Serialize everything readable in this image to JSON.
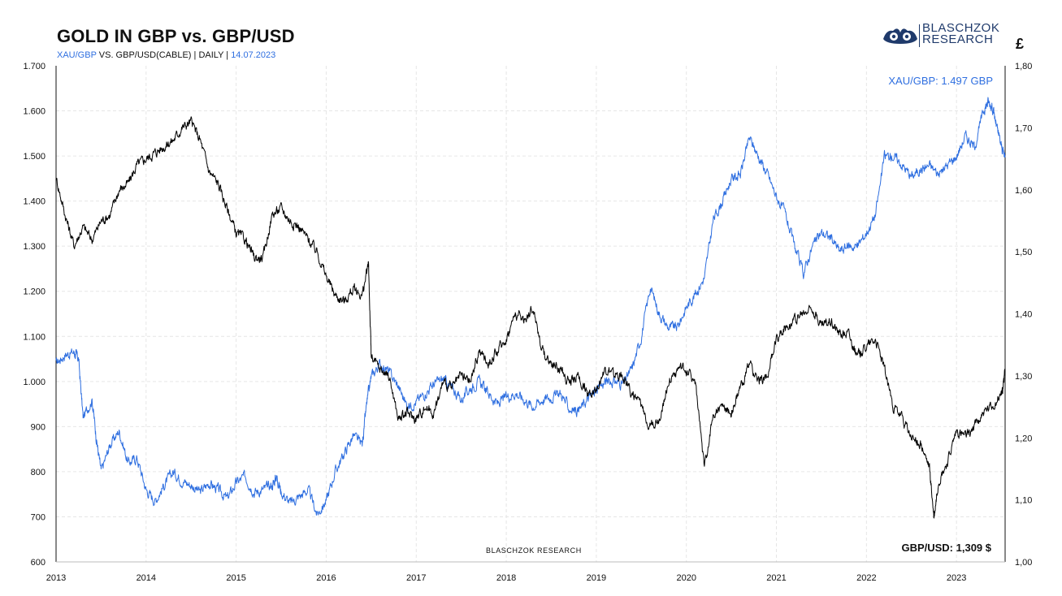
{
  "header": {
    "title": "GOLD IN GBP vs. GBP/USD",
    "subtitle_series": "XAU/GBP",
    "subtitle_text": " VS. GBP/USD(CABLE) | DAILY | ",
    "subtitle_date": "14.07.2023",
    "currency_symbol": "£"
  },
  "logo": {
    "line1": "BLASCHZOK",
    "line2": "RESEARCH"
  },
  "annotations": {
    "latest_gold": "XAU/GBP: 1.497 GBP",
    "latest_cable": "GBP/USD: 1,309 $",
    "watermark": "BLASCHZOK  RESEARCH"
  },
  "colors": {
    "gold_series": "#2f6fe0",
    "cable_series": "#000000"
  },
  "chart_data": {
    "type": "line",
    "title": "GOLD IN GBP vs. GBP/USD",
    "x_ticks": [
      "2013",
      "2014",
      "2015",
      "2016",
      "2017",
      "2018",
      "2019",
      "2020",
      "2021",
      "2022",
      "2023"
    ],
    "xlim": [
      2013.0,
      2023.54
    ],
    "y_left": {
      "ticks": [
        "600",
        "700",
        "800",
        "900",
        "1.000",
        "1.100",
        "1.200",
        "1.300",
        "1.400",
        "1.500",
        "1.600",
        "1.700"
      ],
      "lim": [
        600,
        1700
      ]
    },
    "y_right": {
      "ticks": [
        "1,00",
        "1,10",
        "1,20",
        "1,30",
        "1,40",
        "1,50",
        "1,60",
        "1,70",
        "1,80"
      ],
      "lim": [
        1.0,
        1.8
      ]
    },
    "grid": true,
    "series": [
      {
        "name": "XAU/GBP",
        "axis": "left",
        "points": [
          [
            2013.0,
            1040
          ],
          [
            2013.1,
            1060
          ],
          [
            2013.2,
            1065
          ],
          [
            2013.25,
            1050
          ],
          [
            2013.3,
            920
          ],
          [
            2013.4,
            960
          ],
          [
            2013.45,
            870
          ],
          [
            2013.5,
            800
          ],
          [
            2013.6,
            860
          ],
          [
            2013.7,
            890
          ],
          [
            2013.8,
            820
          ],
          [
            2013.9,
            830
          ],
          [
            2014.0,
            760
          ],
          [
            2014.1,
            735
          ],
          [
            2014.2,
            770
          ],
          [
            2014.3,
            800
          ],
          [
            2014.4,
            780
          ],
          [
            2014.5,
            770
          ],
          [
            2014.6,
            755
          ],
          [
            2014.7,
            775
          ],
          [
            2014.8,
            760
          ],
          [
            2014.9,
            740
          ],
          [
            2015.0,
            775
          ],
          [
            2015.1,
            790
          ],
          [
            2015.2,
            755
          ],
          [
            2015.3,
            760
          ],
          [
            2015.4,
            770
          ],
          [
            2015.45,
            790
          ],
          [
            2015.5,
            755
          ],
          [
            2015.6,
            730
          ],
          [
            2015.7,
            745
          ],
          [
            2015.8,
            760
          ],
          [
            2015.9,
            705
          ],
          [
            2016.0,
            735
          ],
          [
            2016.1,
            800
          ],
          [
            2016.2,
            840
          ],
          [
            2016.3,
            880
          ],
          [
            2016.4,
            860
          ],
          [
            2016.45,
            950
          ],
          [
            2016.5,
            1010
          ],
          [
            2016.6,
            1040
          ],
          [
            2016.7,
            1020
          ],
          [
            2016.8,
            990
          ],
          [
            2016.9,
            945
          ],
          [
            2017.0,
            955
          ],
          [
            2017.1,
            975
          ],
          [
            2017.2,
            995
          ],
          [
            2017.3,
            1005
          ],
          [
            2017.4,
            985
          ],
          [
            2017.5,
            960
          ],
          [
            2017.6,
            985
          ],
          [
            2017.7,
            1000
          ],
          [
            2017.8,
            975
          ],
          [
            2017.9,
            950
          ],
          [
            2018.0,
            965
          ],
          [
            2018.1,
            975
          ],
          [
            2018.2,
            960
          ],
          [
            2018.3,
            945
          ],
          [
            2018.4,
            960
          ],
          [
            2018.5,
            965
          ],
          [
            2018.6,
            975
          ],
          [
            2018.7,
            940
          ],
          [
            2018.8,
            935
          ],
          [
            2018.9,
            960
          ],
          [
            2019.0,
            980
          ],
          [
            2019.1,
            1000
          ],
          [
            2019.2,
            1000
          ],
          [
            2019.3,
            995
          ],
          [
            2019.4,
            1030
          ],
          [
            2019.5,
            1100
          ],
          [
            2019.6,
            1210
          ],
          [
            2019.7,
            1150
          ],
          [
            2019.8,
            1120
          ],
          [
            2019.9,
            1120
          ],
          [
            2020.0,
            1165
          ],
          [
            2020.1,
            1195
          ],
          [
            2020.2,
            1230
          ],
          [
            2020.3,
            1360
          ],
          [
            2020.4,
            1400
          ],
          [
            2020.5,
            1450
          ],
          [
            2020.6,
            1460
          ],
          [
            2020.7,
            1540
          ],
          [
            2020.8,
            1500
          ],
          [
            2020.9,
            1460
          ],
          [
            2021.0,
            1410
          ],
          [
            2021.1,
            1370
          ],
          [
            2021.2,
            1300
          ],
          [
            2021.3,
            1240
          ],
          [
            2021.4,
            1300
          ],
          [
            2021.5,
            1330
          ],
          [
            2021.6,
            1320
          ],
          [
            2021.7,
            1290
          ],
          [
            2021.8,
            1300
          ],
          [
            2021.9,
            1300
          ],
          [
            2022.0,
            1330
          ],
          [
            2022.1,
            1370
          ],
          [
            2022.2,
            1500
          ],
          [
            2022.3,
            1500
          ],
          [
            2022.4,
            1480
          ],
          [
            2022.5,
            1455
          ],
          [
            2022.6,
            1470
          ],
          [
            2022.7,
            1480
          ],
          [
            2022.8,
            1460
          ],
          [
            2022.9,
            1480
          ],
          [
            2023.0,
            1500
          ],
          [
            2023.1,
            1545
          ],
          [
            2023.2,
            1520
          ],
          [
            2023.3,
            1600
          ],
          [
            2023.35,
            1620
          ],
          [
            2023.4,
            1610
          ],
          [
            2023.45,
            1560
          ],
          [
            2023.5,
            1520
          ],
          [
            2023.54,
            1497
          ]
        ]
      },
      {
        "name": "GBP/USD",
        "axis": "right",
        "points": [
          [
            2013.0,
            1.62
          ],
          [
            2013.1,
            1.56
          ],
          [
            2013.2,
            1.51
          ],
          [
            2013.3,
            1.54
          ],
          [
            2013.4,
            1.52
          ],
          [
            2013.5,
            1.55
          ],
          [
            2013.6,
            1.56
          ],
          [
            2013.7,
            1.6
          ],
          [
            2013.8,
            1.61
          ],
          [
            2013.9,
            1.64
          ],
          [
            2014.0,
            1.65
          ],
          [
            2014.1,
            1.66
          ],
          [
            2014.2,
            1.67
          ],
          [
            2014.3,
            1.68
          ],
          [
            2014.4,
            1.7
          ],
          [
            2014.5,
            1.71
          ],
          [
            2014.6,
            1.68
          ],
          [
            2014.7,
            1.63
          ],
          [
            2014.8,
            1.61
          ],
          [
            2014.9,
            1.57
          ],
          [
            2015.0,
            1.53
          ],
          [
            2015.1,
            1.52
          ],
          [
            2015.2,
            1.49
          ],
          [
            2015.3,
            1.49
          ],
          [
            2015.4,
            1.56
          ],
          [
            2015.5,
            1.57
          ],
          [
            2015.6,
            1.55
          ],
          [
            2015.7,
            1.54
          ],
          [
            2015.8,
            1.52
          ],
          [
            2015.9,
            1.5
          ],
          [
            2016.0,
            1.46
          ],
          [
            2016.1,
            1.43
          ],
          [
            2016.2,
            1.42
          ],
          [
            2016.3,
            1.44
          ],
          [
            2016.4,
            1.43
          ],
          [
            2016.47,
            1.48
          ],
          [
            2016.5,
            1.33
          ],
          [
            2016.6,
            1.31
          ],
          [
            2016.7,
            1.3
          ],
          [
            2016.8,
            1.23
          ],
          [
            2016.9,
            1.24
          ],
          [
            2017.0,
            1.23
          ],
          [
            2017.1,
            1.25
          ],
          [
            2017.2,
            1.24
          ],
          [
            2017.3,
            1.29
          ],
          [
            2017.4,
            1.28
          ],
          [
            2017.5,
            1.3
          ],
          [
            2017.6,
            1.29
          ],
          [
            2017.7,
            1.34
          ],
          [
            2017.8,
            1.32
          ],
          [
            2017.9,
            1.34
          ],
          [
            2018.0,
            1.36
          ],
          [
            2018.1,
            1.4
          ],
          [
            2018.2,
            1.39
          ],
          [
            2018.3,
            1.41
          ],
          [
            2018.4,
            1.34
          ],
          [
            2018.5,
            1.32
          ],
          [
            2018.6,
            1.31
          ],
          [
            2018.7,
            1.29
          ],
          [
            2018.8,
            1.3
          ],
          [
            2018.9,
            1.27
          ],
          [
            2019.0,
            1.28
          ],
          [
            2019.1,
            1.31
          ],
          [
            2019.2,
            1.3
          ],
          [
            2019.3,
            1.3
          ],
          [
            2019.4,
            1.27
          ],
          [
            2019.5,
            1.25
          ],
          [
            2019.6,
            1.22
          ],
          [
            2019.7,
            1.23
          ],
          [
            2019.8,
            1.29
          ],
          [
            2019.9,
            1.31
          ],
          [
            2020.0,
            1.31
          ],
          [
            2020.1,
            1.29
          ],
          [
            2020.2,
            1.15
          ],
          [
            2020.3,
            1.24
          ],
          [
            2020.4,
            1.25
          ],
          [
            2020.5,
            1.24
          ],
          [
            2020.6,
            1.28
          ],
          [
            2020.7,
            1.32
          ],
          [
            2020.8,
            1.29
          ],
          [
            2020.9,
            1.3
          ],
          [
            2021.0,
            1.36
          ],
          [
            2021.1,
            1.38
          ],
          [
            2021.2,
            1.39
          ],
          [
            2021.3,
            1.4
          ],
          [
            2021.4,
            1.41
          ],
          [
            2021.5,
            1.38
          ],
          [
            2021.6,
            1.39
          ],
          [
            2021.7,
            1.37
          ],
          [
            2021.8,
            1.37
          ],
          [
            2021.9,
            1.33
          ],
          [
            2022.0,
            1.35
          ],
          [
            2022.1,
            1.36
          ],
          [
            2022.2,
            1.31
          ],
          [
            2022.3,
            1.25
          ],
          [
            2022.4,
            1.23
          ],
          [
            2022.5,
            1.2
          ],
          [
            2022.6,
            1.19
          ],
          [
            2022.7,
            1.15
          ],
          [
            2022.75,
            1.07
          ],
          [
            2022.8,
            1.13
          ],
          [
            2022.9,
            1.16
          ],
          [
            2023.0,
            1.21
          ],
          [
            2023.1,
            1.2
          ],
          [
            2023.2,
            1.22
          ],
          [
            2023.3,
            1.24
          ],
          [
            2023.4,
            1.25
          ],
          [
            2023.5,
            1.27
          ],
          [
            2023.54,
            1.309
          ]
        ]
      }
    ]
  }
}
